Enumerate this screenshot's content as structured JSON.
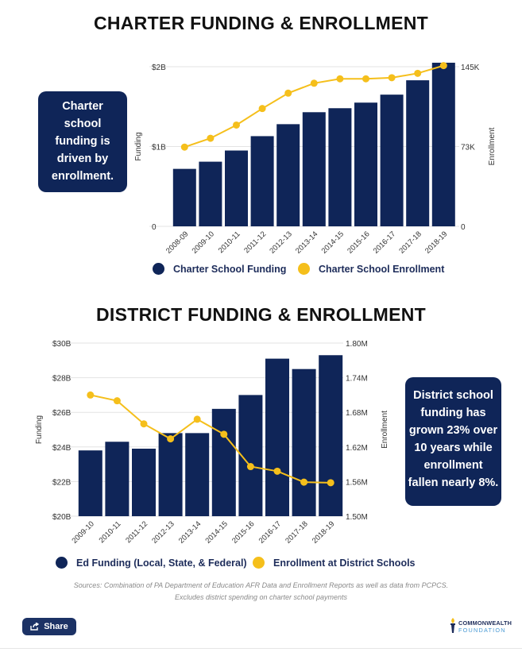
{
  "charter": {
    "title": "CHARTER FUNDING & ENROLLMENT",
    "callout_lines": [
      "Charter",
      "school",
      "funding is",
      "driven by",
      "enrollment."
    ],
    "legend": {
      "funding": "Charter School Funding",
      "enrollment": "Charter School Enrollment"
    }
  },
  "district": {
    "title": "DISTRICT FUNDING & ENROLLMENT",
    "callout_lines": [
      "District school",
      "funding has",
      "grown 23% over",
      "10 years while",
      "enrollment",
      "fallen nearly 8%."
    ],
    "legend": {
      "funding": "Ed Funding (Local, State, & Federal)",
      "enrollment": "Enrollment at District Schools"
    }
  },
  "source_lines": [
    "Sources: Combination of PA Department of Education AFR Data and Enrollment Reports  as well as data from  PCPCS.",
    "Excludes district spending on charter school  payments"
  ],
  "share_label": "Share",
  "logo": {
    "line1": "COMMONWEALTH",
    "line2": "FOUNDATION"
  },
  "colors": {
    "navy": "#0f2558",
    "gold": "#f5bf1b",
    "gray": "#8a8a8a"
  },
  "chart_data": [
    {
      "type": "bar",
      "title": "CHARTER FUNDING & ENROLLMENT",
      "categories": [
        "2008-09",
        "2009-10",
        "2010-11",
        "2011-12",
        "2012-13",
        "2013-14",
        "2014-15",
        "2015-16",
        "2016-17",
        "2017-18",
        "2018-19"
      ],
      "series": [
        {
          "name": "Charter School Funding",
          "type": "bar",
          "axis": "left",
          "values": [
            0.72,
            0.81,
            0.95,
            1.13,
            1.28,
            1.43,
            1.48,
            1.55,
            1.65,
            1.83,
            2.05
          ]
        },
        {
          "name": "Charter School Enrollment",
          "type": "line",
          "axis": "right",
          "values": [
            72,
            80,
            92,
            107,
            121,
            130,
            134,
            134,
            135,
            139,
            146
          ]
        }
      ],
      "ylabel": "Funding",
      "y2label": "Enrollment",
      "ylim": [
        0,
        2.0
      ],
      "y2lim": [
        0,
        145
      ],
      "yticks": [
        "0",
        "$1B",
        "$2B"
      ],
      "y2ticks": [
        "0",
        "73K",
        "145K"
      ]
    },
    {
      "type": "bar",
      "title": "DISTRICT FUNDING & ENROLLMENT",
      "categories": [
        "2009-10",
        "2010-11",
        "2011-12",
        "2012-13",
        "2013-14",
        "2014-15",
        "2015-16",
        "2016-17",
        "2017-18",
        "2018-19"
      ],
      "series": [
        {
          "name": "Ed Funding (Local, State, & Federal)",
          "type": "bar",
          "axis": "left",
          "values": [
            23.8,
            24.3,
            23.9,
            24.8,
            24.8,
            26.2,
            27.0,
            29.1,
            28.5,
            29.3
          ]
        },
        {
          "name": "Enrollment at District Schools",
          "type": "line",
          "axis": "right",
          "values": [
            1.71,
            1.7,
            1.66,
            1.634,
            1.668,
            1.642,
            1.586,
            1.578,
            1.559,
            1.558
          ]
        }
      ],
      "ylabel": "Funding",
      "y2label": "Enrollment",
      "ylim": [
        20,
        30
      ],
      "y2lim": [
        1.5,
        1.8
      ],
      "yticks": [
        "$20B",
        "$22B",
        "$24B",
        "$26B",
        "$28B",
        "$30B"
      ],
      "y2ticks": [
        "1.50M",
        "1.56M",
        "1.62M",
        "1.68M",
        "1.74M",
        "1.80M"
      ]
    }
  ]
}
